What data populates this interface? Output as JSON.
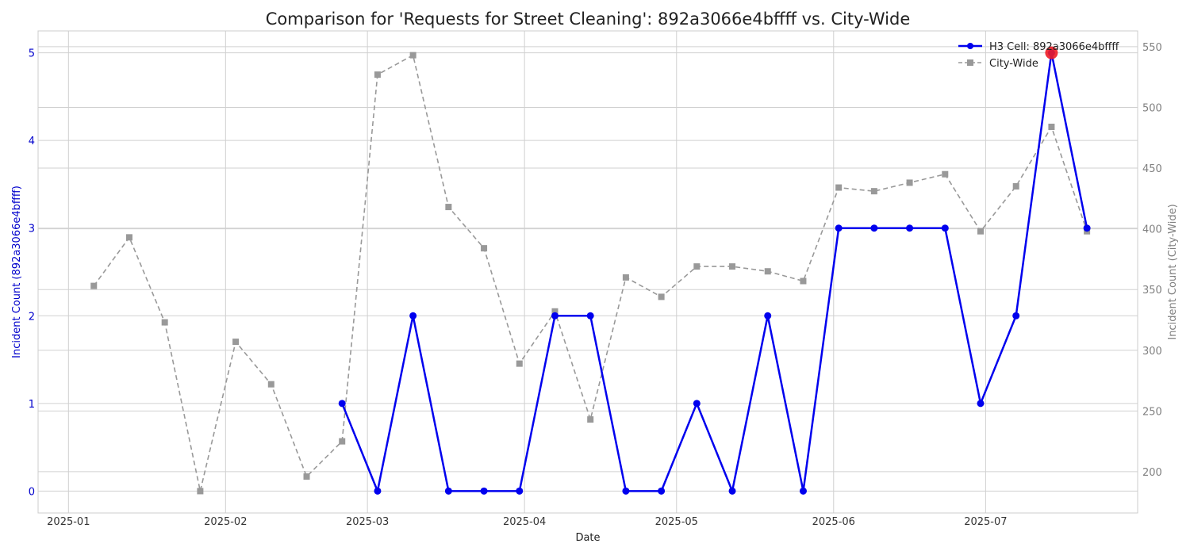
{
  "chart_data": {
    "type": "line",
    "title": "Comparison for 'Requests for Street Cleaning': 892a3066e4bffff vs. City-Wide",
    "xlabel": "Date",
    "ylabel_left": "Incident Count (892a3066e4bffff)",
    "ylabel_right": "Incident Count (City-Wide)",
    "x_ticks": [
      "2025-01",
      "2025-02",
      "2025-03",
      "2025-04",
      "2025-05",
      "2025-06",
      "2025-07"
    ],
    "x_tick_dates": [
      "2025-01-01",
      "2025-02-01",
      "2025-03-01",
      "2025-04-01",
      "2025-05-01",
      "2025-06-01",
      "2025-07-01"
    ],
    "x_range": [
      "2024-12-26",
      "2025-07-31"
    ],
    "y_left_ticks": [
      0,
      1,
      2,
      3,
      4,
      5
    ],
    "y_left_range": [
      -0.25,
      5.25
    ],
    "y_right_ticks": [
      200,
      250,
      300,
      350,
      400,
      450,
      500,
      550
    ],
    "y_right_range": [
      166,
      563
    ],
    "grid": true,
    "legend_position": "top-right",
    "legend": [
      "H3 Cell: 892a3066e4bffff",
      "City-Wide"
    ],
    "colors": {
      "cell": "#0000ee",
      "citywide": "#999999",
      "highlight": "#ee1c25",
      "left_axis": "#0000cc",
      "right_axis": "#808080"
    },
    "series": [
      {
        "name": "H3 Cell: 892a3066e4bffff",
        "axis": "left",
        "style": "solid-circle",
        "points": [
          [
            "2025-02-24",
            1
          ],
          [
            "2025-03-03",
            0
          ],
          [
            "2025-03-10",
            2
          ],
          [
            "2025-03-17",
            0
          ],
          [
            "2025-03-24",
            0
          ],
          [
            "2025-03-31",
            0
          ],
          [
            "2025-04-07",
            2
          ],
          [
            "2025-04-14",
            2
          ],
          [
            "2025-04-21",
            0
          ],
          [
            "2025-04-28",
            0
          ],
          [
            "2025-05-05",
            1
          ],
          [
            "2025-05-12",
            0
          ],
          [
            "2025-05-19",
            2
          ],
          [
            "2025-05-26",
            0
          ],
          [
            "2025-06-02",
            3
          ],
          [
            "2025-06-09",
            3
          ],
          [
            "2025-06-16",
            3
          ],
          [
            "2025-06-23",
            3
          ],
          [
            "2025-06-30",
            1
          ],
          [
            "2025-07-07",
            2
          ],
          [
            "2025-07-14",
            5
          ],
          [
            "2025-07-21",
            3
          ]
        ],
        "highlight": [
          "2025-07-14",
          5
        ]
      },
      {
        "name": "City-Wide",
        "axis": "right",
        "style": "dashed-square",
        "points": [
          [
            "2025-01-06",
            353
          ],
          [
            "2025-01-13",
            393
          ],
          [
            "2025-01-20",
            323
          ],
          [
            "2025-01-27",
            184
          ],
          [
            "2025-02-03",
            307
          ],
          [
            "2025-02-10",
            272
          ],
          [
            "2025-02-17",
            196
          ],
          [
            "2025-02-24",
            225
          ],
          [
            "2025-03-03",
            527
          ],
          [
            "2025-03-10",
            543
          ],
          [
            "2025-03-17",
            418
          ],
          [
            "2025-03-24",
            384
          ],
          [
            "2025-03-31",
            289
          ],
          [
            "2025-04-07",
            332
          ],
          [
            "2025-04-14",
            243
          ],
          [
            "2025-04-21",
            360
          ],
          [
            "2025-04-28",
            344
          ],
          [
            "2025-05-05",
            369
          ],
          [
            "2025-05-12",
            369
          ],
          [
            "2025-05-19",
            365
          ],
          [
            "2025-05-26",
            357
          ],
          [
            "2025-06-02",
            434
          ],
          [
            "2025-06-09",
            431
          ],
          [
            "2025-06-16",
            438
          ],
          [
            "2025-06-23",
            445
          ],
          [
            "2025-06-30",
            398
          ],
          [
            "2025-07-07",
            435
          ],
          [
            "2025-07-14",
            484
          ],
          [
            "2025-07-21",
            398
          ]
        ]
      }
    ]
  }
}
